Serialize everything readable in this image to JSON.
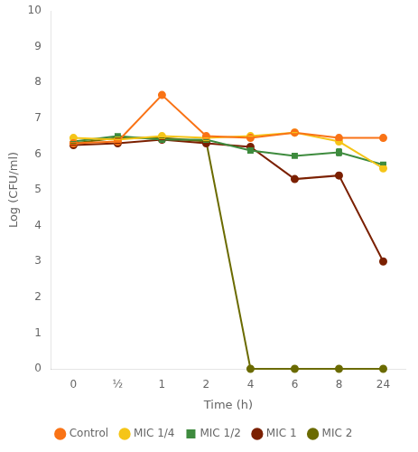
{
  "chart_data": {
    "type": "line",
    "xlabel": "Time (h)",
    "ylabel": "Log (CFU/ml)",
    "categories": [
      "0",
      "½",
      "1",
      "2",
      "4",
      "6",
      "8",
      "24"
    ],
    "series": [
      {
        "name": "Control",
        "color": "#F97316",
        "marker": "circle",
        "values": [
          6.3,
          6.35,
          7.65,
          6.5,
          6.45,
          6.6,
          6.45,
          6.45
        ],
        "yerr": [
          0,
          0,
          0,
          0,
          0,
          0,
          0,
          0
        ]
      },
      {
        "name": "MIC 1/4",
        "color": "#F5C518",
        "marker": "circle",
        "values": [
          6.45,
          6.4,
          6.5,
          6.45,
          6.5,
          6.6,
          6.35,
          5.6
        ],
        "yerr": [
          0,
          0,
          0,
          0,
          0,
          0,
          0,
          0
        ]
      },
      {
        "name": "MIC 1/2",
        "color": "#3E8B3E",
        "marker": "square",
        "values": [
          6.35,
          6.5,
          6.4,
          6.4,
          6.1,
          5.95,
          6.05,
          5.7
        ],
        "yerr": [
          0,
          0,
          0,
          0,
          0,
          0,
          0.1,
          0
        ]
      },
      {
        "name": "MIC 1",
        "color": "#7B2000",
        "marker": "circle",
        "values": [
          6.25,
          6.3,
          6.4,
          6.3,
          6.2,
          5.3,
          5.4,
          3.0
        ],
        "yerr": [
          0,
          0,
          0,
          0,
          0,
          0,
          0.07,
          0
        ]
      },
      {
        "name": "MIC 2",
        "color": "#6B6B00",
        "marker": "circle",
        "values": [
          6.3,
          6.45,
          6.45,
          6.35,
          0.0,
          0.0,
          0.0,
          0.0
        ],
        "yerr": [
          0,
          0,
          0,
          0,
          0,
          0,
          0,
          0
        ]
      }
    ],
    "ylim": [
      0,
      10
    ],
    "yticks": [
      0,
      1,
      2,
      3,
      4,
      5,
      6,
      7,
      8,
      9,
      10
    ],
    "grid": false,
    "legend": "bottom"
  }
}
